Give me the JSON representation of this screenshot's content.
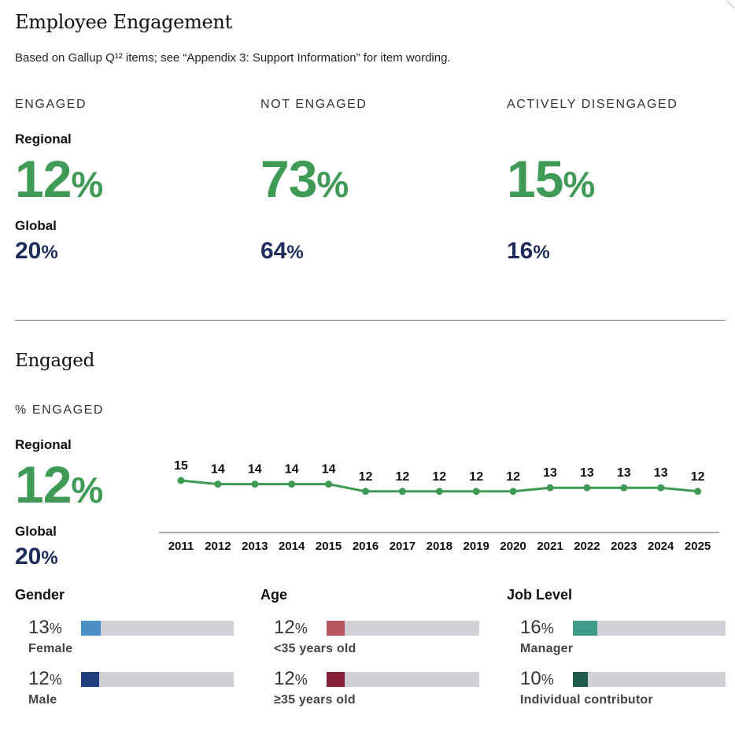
{
  "header": {
    "title": "Employee Engagement",
    "subtitle": "Based on Gallup Q¹² items; see “Appendix 3: Support Information” for item wording."
  },
  "summary": [
    {
      "label": "ENGAGED",
      "regional_label": "Regional",
      "regional_value": "12",
      "global_label": "Global",
      "global_value": "20",
      "unit": "%"
    },
    {
      "label": "NOT ENGAGED",
      "regional_label": "",
      "regional_value": "73",
      "global_label": "",
      "global_value": "64",
      "unit": "%"
    },
    {
      "label": "ACTIVELY DISENGAGED",
      "regional_label": "",
      "regional_value": "15",
      "global_label": "",
      "global_value": "16",
      "unit": "%"
    }
  ],
  "engaged_section": {
    "title": "Engaged",
    "metric_label": "% ENGAGED",
    "regional_label": "Regional",
    "regional_value": "12",
    "global_label": "Global",
    "global_value": "20",
    "unit": "%"
  },
  "chart_data": {
    "type": "line",
    "title": "% Engaged (Regional)",
    "xlabel": "",
    "ylabel": "",
    "x": [
      "2011",
      "2012",
      "2013",
      "2014",
      "2015",
      "2016",
      "2017",
      "2018",
      "2019",
      "2020",
      "2021",
      "2022",
      "2023",
      "2024",
      "2025"
    ],
    "values": [
      15,
      14,
      14,
      14,
      14,
      12,
      12,
      12,
      12,
      12,
      13,
      13,
      13,
      13,
      12
    ],
    "ylim": [
      0,
      100
    ],
    "grid": false,
    "color": "#3f9a55"
  },
  "breakdowns": [
    {
      "heading": "Gender",
      "items": [
        {
          "value": "13",
          "unit": "%",
          "name": "Female",
          "fraction": 0.13,
          "color": "#4a90c8"
        },
        {
          "value": "12",
          "unit": "%",
          "name": "Male",
          "fraction": 0.12,
          "color": "#1f3f7f"
        }
      ]
    },
    {
      "heading": "Age",
      "items": [
        {
          "value": "12",
          "unit": "%",
          "name": "<35 years old",
          "fraction": 0.12,
          "color": "#b5565e"
        },
        {
          "value": "12",
          "unit": "%",
          "name": "≥35 years old",
          "fraction": 0.12,
          "color": "#8a1f3a"
        }
      ]
    },
    {
      "heading": "Job Level",
      "items": [
        {
          "value": "16",
          "unit": "%",
          "name": "Manager",
          "fraction": 0.16,
          "color": "#3f9a8a"
        },
        {
          "value": "10",
          "unit": "%",
          "name": "Individual contributor",
          "fraction": 0.1,
          "color": "#1e5a4c"
        }
      ]
    }
  ],
  "colors": {
    "accent_green": "#3f9a55",
    "navy": "#1f2d5c",
    "track_gray": "#cfd1d4"
  }
}
